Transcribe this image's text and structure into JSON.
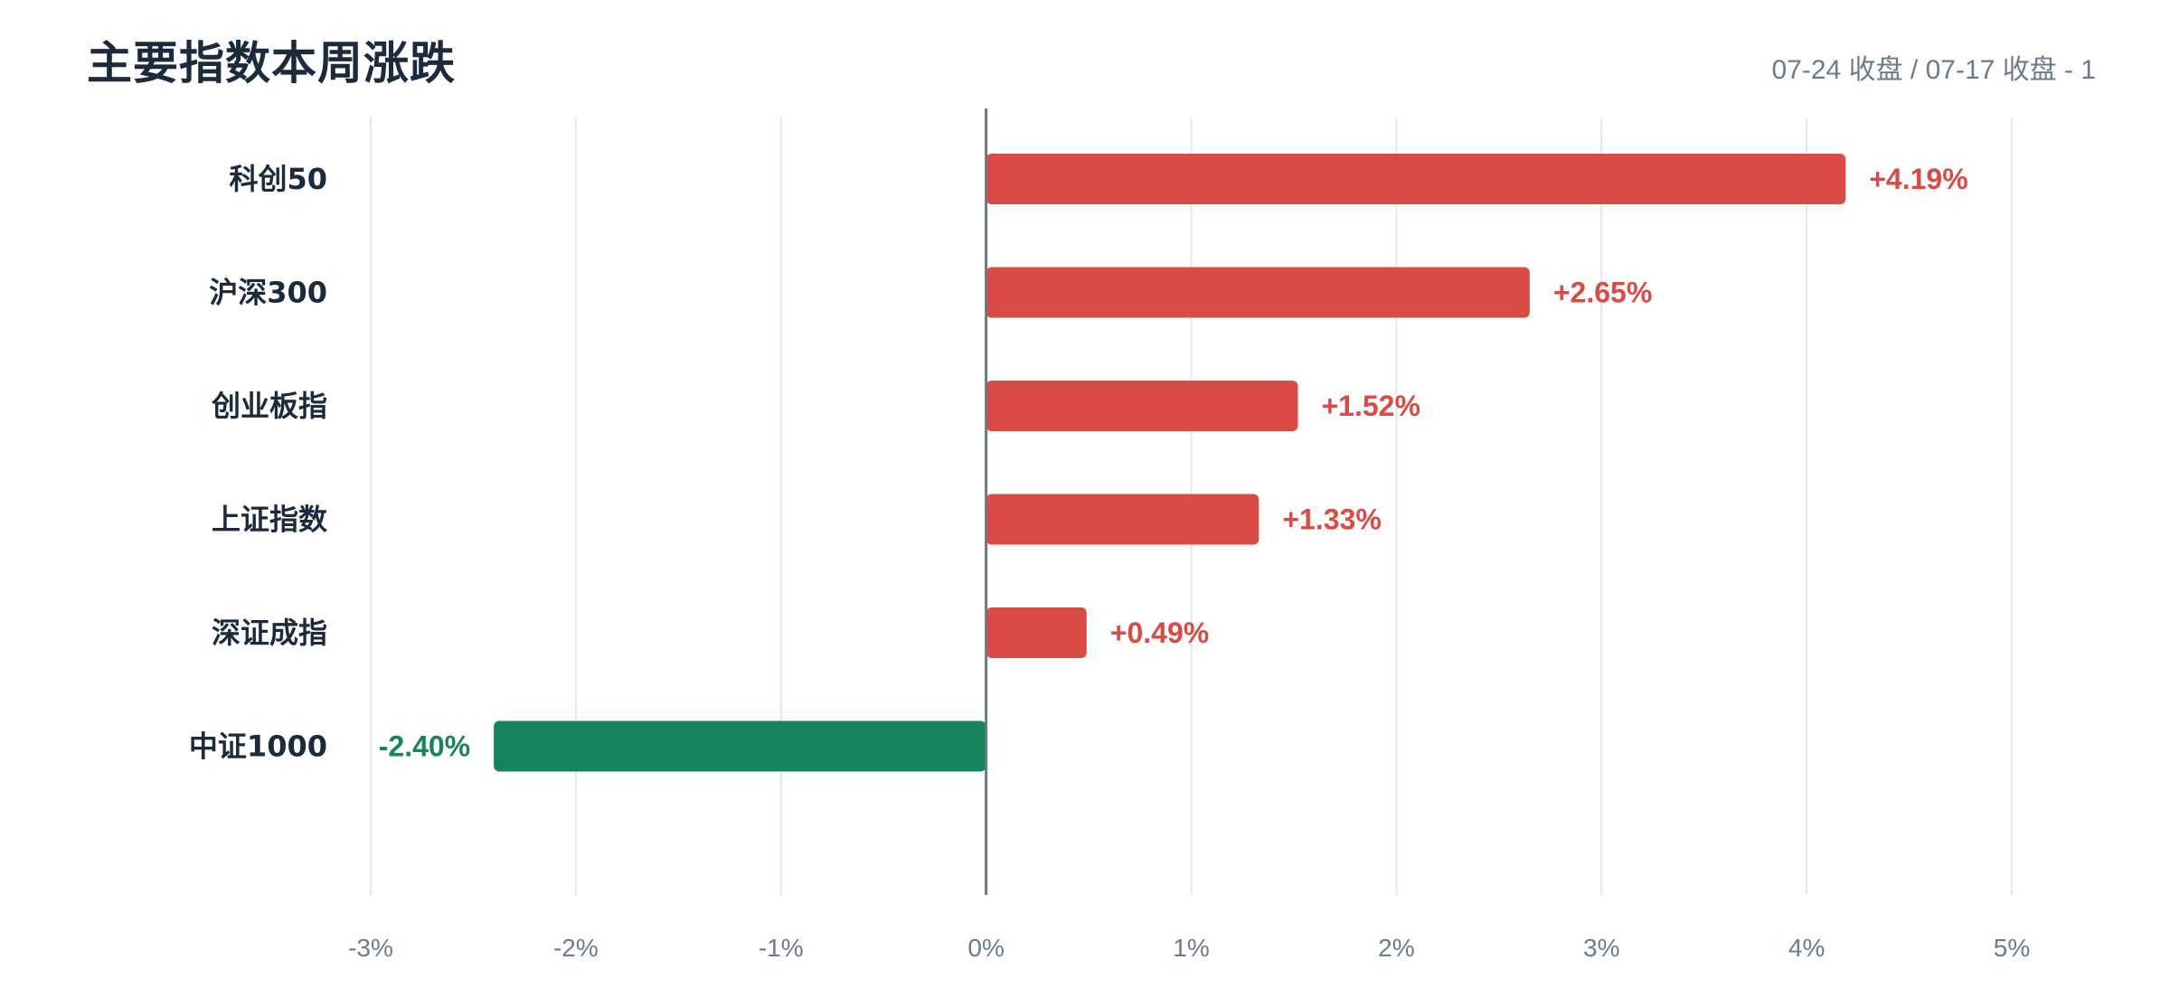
{
  "chart_data": {
    "type": "bar",
    "orientation": "horizontal",
    "title": "主要指数本周涨跌",
    "subtitle": "07-24 收盘 / 07-17 收盘 - 1",
    "categories": [
      "科创50",
      "沪深300",
      "创业板指",
      "上证指数",
      "深证成指",
      "中证1000"
    ],
    "values": [
      4.19,
      2.65,
      1.52,
      1.33,
      0.49,
      -2.4
    ],
    "value_labels": [
      "+4.19%",
      "+2.65%",
      "+1.52%",
      "+1.33%",
      "+0.49%",
      "-2.40%"
    ],
    "xlim": [
      -3,
      5
    ],
    "xticks": [
      -3,
      -2,
      -1,
      0,
      1,
      2,
      3,
      4,
      5
    ],
    "xtick_labels": [
      "-3%",
      "-2%",
      "-1%",
      "0%",
      "1%",
      "2%",
      "3%",
      "4%",
      "5%"
    ],
    "grid": true,
    "colors": {
      "positive": "#d94c45",
      "negative": "#17855c",
      "grid": "#e4e7eb",
      "zero_line": "#6b7684"
    }
  }
}
